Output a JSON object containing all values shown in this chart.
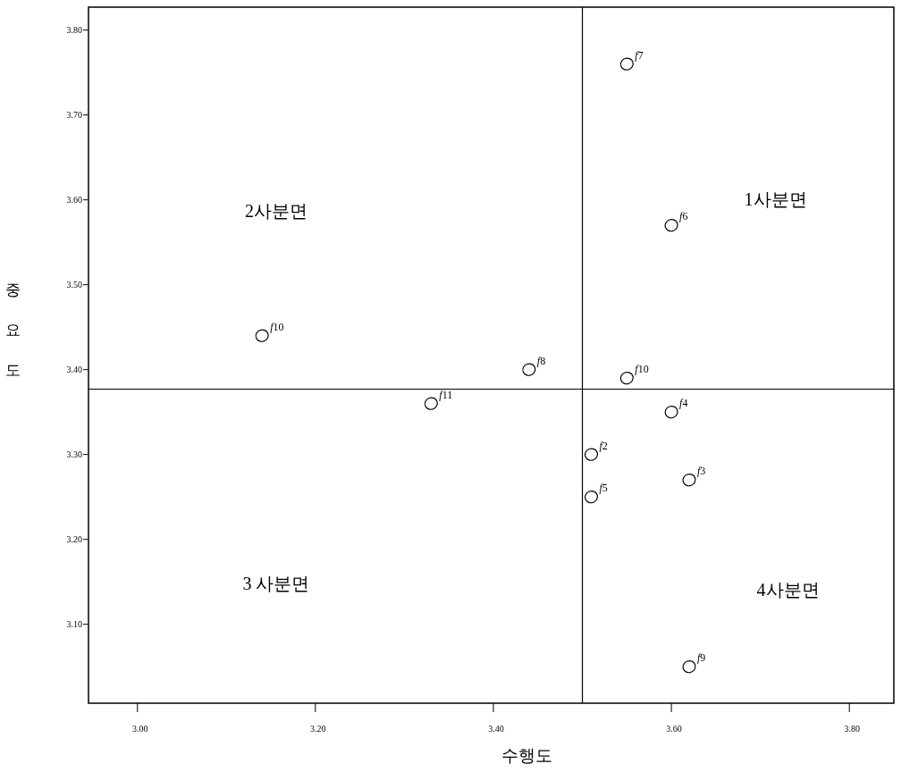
{
  "chart_data": {
    "type": "scatter",
    "xlabel": "수행도",
    "ylabel": "중요도",
    "xlim": [
      2.945,
      3.85
    ],
    "ylim": [
      3.007,
      3.827
    ],
    "xticks": [
      {
        "value": 3.0,
        "label": "3.00"
      },
      {
        "value": 3.2,
        "label": "3.20"
      },
      {
        "value": 3.4,
        "label": "3.40"
      },
      {
        "value": 3.6,
        "label": "3.60"
      },
      {
        "value": 3.8,
        "label": "3.80"
      }
    ],
    "yticks": [
      {
        "value": 3.1,
        "label": "3.10"
      },
      {
        "value": 3.2,
        "label": "3.20"
      },
      {
        "value": 3.3,
        "label": "3.30"
      },
      {
        "value": 3.4,
        "label": "3.40"
      },
      {
        "value": 3.5,
        "label": "3.50"
      },
      {
        "value": 3.6,
        "label": "3.60"
      },
      {
        "value": 3.7,
        "label": "3.70"
      },
      {
        "value": 3.8,
        "label": "3.80"
      }
    ],
    "x": [
      3.55,
      3.6,
      3.44,
      3.55,
      3.14,
      3.33,
      3.6,
      3.51,
      3.62,
      3.51,
      3.62
    ],
    "values": [
      3.76,
      3.57,
      3.4,
      3.39,
      3.44,
      3.36,
      3.35,
      3.3,
      3.27,
      3.25,
      3.05
    ],
    "value_labels": [
      "f7",
      "f6",
      "f8",
      "f10",
      "f10",
      "f11",
      "f4",
      "f2",
      "f3",
      "f5",
      "f9"
    ],
    "marker": "circle",
    "ref_lines": [
      {
        "axis": "x",
        "value": 3.5,
        "color": "#000000"
      },
      {
        "axis": "y",
        "value": 3.377,
        "color": "#000000"
      }
    ],
    "annotations": [
      "1사분면",
      "2사분면",
      "3 사분면",
      "4사분면"
    ],
    "grid": false
  }
}
